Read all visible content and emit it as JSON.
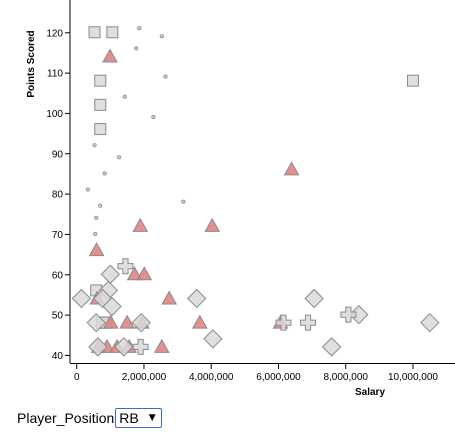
{
  "chart_data": {
    "type": "scatter",
    "xlabel": "Salary",
    "ylabel": "Points Scored",
    "xlim": [
      -200000,
      11250000
    ],
    "ylim": [
      38,
      128
    ],
    "x_ticks": [
      0,
      2000000,
      4000000,
      6000000,
      8000000,
      10000000
    ],
    "x_tick_labels": [
      "0",
      "2,000,000",
      "4,000,000",
      "6,000,000",
      "8,000,000",
      "10,000,000"
    ],
    "y_ticks": [
      40,
      50,
      60,
      70,
      80,
      90,
      100,
      110,
      120
    ],
    "y_tick_labels": [
      "40",
      "50",
      "60",
      "70",
      "80",
      "90",
      "100",
      "110",
      "120"
    ],
    "style": {
      "highlight_color": "#e07b7b",
      "muted_color": "#d9d9d9",
      "stroke_color": "#8a8a8a"
    },
    "series": [
      {
        "shape": "circle",
        "highlighted": false,
        "points": [
          [
            1860000,
            121
          ],
          [
            2530000,
            119
          ],
          [
            1770000,
            116
          ],
          [
            2640000,
            109
          ],
          [
            1430000,
            104
          ],
          [
            2280000,
            99
          ],
          [
            530000,
            92
          ],
          [
            1260000,
            89
          ],
          [
            830000,
            85
          ],
          [
            330000,
            81
          ],
          [
            3170000,
            78
          ],
          [
            700000,
            77
          ],
          [
            580000,
            74
          ],
          [
            550000,
            70
          ]
        ]
      },
      {
        "shape": "square",
        "highlighted": false,
        "points": [
          [
            530000,
            120
          ],
          [
            1060000,
            120
          ],
          [
            700000,
            108
          ],
          [
            10000000,
            108
          ],
          [
            700000,
            102
          ],
          [
            700000,
            96
          ],
          [
            580000,
            56
          ],
          [
            750000,
            48
          ],
          [
            880000,
            48
          ]
        ]
      },
      {
        "shape": "triangle",
        "highlighted": true,
        "points": [
          [
            990000,
            114
          ],
          [
            6390000,
            86
          ],
          [
            1890000,
            72
          ],
          [
            4030000,
            72
          ],
          [
            590000,
            66
          ],
          [
            1720000,
            60
          ],
          [
            2010000,
            60
          ],
          [
            2750000,
            54
          ],
          [
            610000,
            54
          ],
          [
            1010000,
            48
          ],
          [
            1500000,
            48
          ],
          [
            1940000,
            48
          ],
          [
            3660000,
            48
          ],
          [
            6060000,
            48
          ],
          [
            650000,
            42
          ],
          [
            900000,
            42
          ],
          [
            1200000,
            42
          ],
          [
            1560000,
            42
          ],
          [
            2530000,
            42
          ]
        ]
      },
      {
        "shape": "diamond",
        "highlighted": false,
        "points": [
          [
            1000000,
            60
          ],
          [
            940000,
            56
          ],
          [
            3570000,
            54
          ],
          [
            7060000,
            54
          ],
          [
            140000,
            54
          ],
          [
            770000,
            54
          ],
          [
            1050000,
            52
          ],
          [
            8390000,
            50
          ],
          [
            1920000,
            48
          ],
          [
            10500000,
            48
          ],
          [
            580000,
            48
          ],
          [
            630000,
            42
          ],
          [
            4050000,
            44
          ],
          [
            7580000,
            42
          ],
          [
            1400000,
            42
          ]
        ]
      },
      {
        "shape": "cross",
        "highlighted": false,
        "points": [
          [
            1450000,
            62
          ],
          [
            6150000,
            48
          ],
          [
            6880000,
            48
          ],
          [
            8080000,
            50
          ],
          [
            1900000,
            42
          ]
        ]
      }
    ]
  },
  "controls": {
    "position_label": "Player_Position",
    "position_value": "RB",
    "caret": "▼"
  }
}
